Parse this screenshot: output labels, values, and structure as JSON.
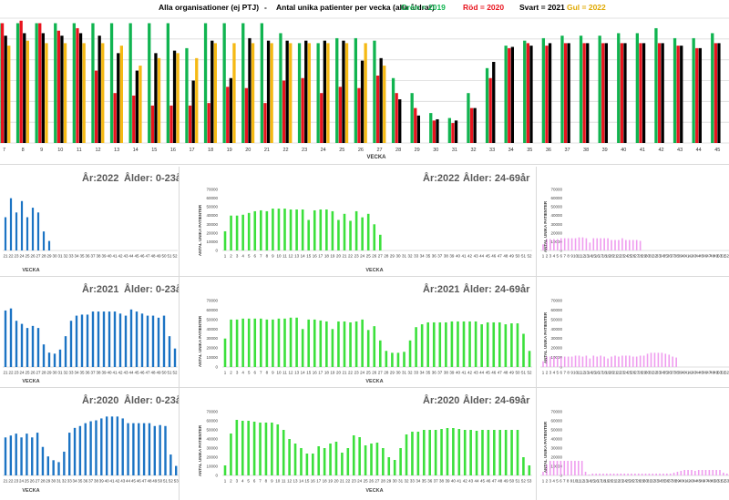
{
  "header": {
    "org": "Alla organisationer (ej PTJ)",
    "dash": "-",
    "title": "Antal unika patienter per vecka (alla åldrar)",
    "legend": [
      {
        "text": "Grön = 2019",
        "color": "#10b450"
      },
      {
        "text": "Röd = 2020",
        "color": "#e8141e"
      },
      {
        "text": "Svart = 2021",
        "color": "#000000"
      },
      {
        "text": "Gul = 2022",
        "color": "#f5b914"
      }
    ]
  },
  "chart_data": [
    {
      "id": "main",
      "type": "bar",
      "title": "Antal unika patienter per vecka (alla åldrar)",
      "xlabel": "VECKA",
      "ylabel": "",
      "ylim": [
        0,
        100
      ],
      "categories": [
        "7",
        "8",
        "9",
        "10",
        "11",
        "12",
        "13",
        "14",
        "15",
        "16",
        "17",
        "18",
        "19",
        "20",
        "21",
        "22",
        "23",
        "24",
        "25",
        "26",
        "27",
        "28",
        "29",
        "30",
        "31",
        "32",
        "33",
        "34",
        "35",
        "36",
        "37",
        "38",
        "39",
        "40",
        "41",
        "42",
        "43",
        "44",
        "45"
      ],
      "series": [
        {
          "name": "2019",
          "color": "#10b450",
          "values": [
            96,
            96,
            96,
            96,
            96,
            96,
            96,
            96,
            96,
            96,
            76,
            96,
            96,
            96,
            96,
            88,
            80,
            80,
            84,
            84,
            82,
            52,
            40,
            24,
            20,
            40,
            60,
            78,
            82,
            84,
            86,
            86,
            86,
            88,
            88,
            92,
            84,
            84,
            88
          ]
        },
        {
          "name": "2020",
          "color": "#e8141e",
          "values": [
            96,
            98,
            96,
            90,
            92,
            58,
            40,
            38,
            30,
            30,
            30,
            32,
            45,
            44,
            32,
            50,
            52,
            40,
            45,
            44,
            54,
            40,
            28,
            18,
            16,
            28,
            52,
            76,
            80,
            78,
            80,
            80,
            80,
            80,
            80,
            80,
            78,
            76,
            80
          ]
        },
        {
          "name": "2021",
          "color": "#000000",
          "values": [
            86,
            88,
            88,
            86,
            88,
            86,
            72,
            58,
            72,
            74,
            50,
            82,
            52,
            84,
            82,
            82,
            82,
            82,
            82,
            66,
            68,
            35,
            22,
            19,
            18,
            28,
            65,
            77,
            78,
            80,
            80,
            80,
            80,
            80,
            80,
            80,
            78,
            76,
            80
          ]
        },
        {
          "name": "2022",
          "color": "#f5b914",
          "values": [
            78,
            82,
            80,
            80,
            80,
            80,
            78,
            62,
            68,
            72,
            68,
            80,
            80,
            80,
            80,
            80,
            80,
            80,
            80,
            80,
            62,
            0,
            0,
            0,
            0,
            0,
            0,
            0,
            0,
            0,
            0,
            0,
            0,
            0,
            0,
            0,
            0,
            0,
            0
          ]
        }
      ]
    },
    {
      "id": "2022-0-23",
      "type": "bar",
      "title_year": "År:2022",
      "title_age": "Ålder: 0-23år",
      "xlabel": "VECKA",
      "ylim": [
        0,
        70000
      ],
      "categories": [
        "21",
        "22",
        "23",
        "24",
        "25",
        "26",
        "27",
        "28",
        "29",
        "30",
        "31",
        "32",
        "33",
        "34",
        "35",
        "36",
        "37",
        "38",
        "39",
        "40",
        "41",
        "42",
        "43",
        "44",
        "45",
        "46",
        "47",
        "48",
        "49",
        "50",
        "51",
        "52"
      ],
      "values": [
        35000,
        55000,
        40000,
        52000,
        35000,
        45000,
        40000,
        20000,
        10000,
        0,
        0,
        0,
        0,
        0,
        0,
        0,
        0,
        0,
        0,
        0,
        0,
        0,
        0,
        0,
        0,
        0,
        0,
        0,
        0,
        0,
        0,
        0
      ]
    },
    {
      "id": "2022-24-69",
      "type": "bar",
      "title_year": "År:2022",
      "title_age": "Ålder: 24-69år",
      "xlabel": "VECKA",
      "ylabel": "ANTAL UNIKA PATIENTER",
      "ylim": [
        0,
        70000
      ],
      "yticks": [
        "0",
        "10000",
        "20000",
        "30000",
        "40000",
        "50000",
        "60000",
        "70000"
      ],
      "categories": [
        "1",
        "2",
        "3",
        "4",
        "5",
        "6",
        "7",
        "8",
        "9",
        "10",
        "11",
        "12",
        "13",
        "14",
        "15",
        "16",
        "17",
        "18",
        "19",
        "20",
        "21",
        "22",
        "23",
        "24",
        "25",
        "26",
        "27",
        "28",
        "29",
        "30",
        "31",
        "32",
        "33",
        "34",
        "35",
        "36",
        "37",
        "38",
        "39",
        "40",
        "41",
        "42",
        "43",
        "44",
        "45",
        "46",
        "47",
        "48",
        "49",
        "50",
        "51",
        "52"
      ],
      "values": [
        22000,
        40000,
        40000,
        41000,
        43000,
        45000,
        46000,
        45000,
        48000,
        48000,
        48000,
        47000,
        47000,
        47000,
        35000,
        46000,
        47000,
        47000,
        45000,
        35000,
        42000,
        34000,
        45000,
        38000,
        42000,
        30000,
        18000,
        0,
        0,
        0,
        0,
        0,
        0,
        0,
        0,
        0,
        0,
        0,
        0,
        0,
        0,
        0,
        0,
        0,
        0,
        0,
        0,
        0,
        0,
        0,
        0,
        0
      ]
    },
    {
      "id": "2022-70",
      "type": "bar",
      "ylabel": "ANTAL UNIKA PATIENTER",
      "ylim": [
        0,
        70000
      ],
      "yticks": [
        "0",
        "10000",
        "20000",
        "30000",
        "40000",
        "50000",
        "60000",
        "70000"
      ],
      "categories": [
        "1",
        "2",
        "3",
        "4",
        "5",
        "6",
        "7",
        "8",
        "9",
        "10",
        "11",
        "12",
        "13",
        "14",
        "15",
        "16",
        "17",
        "18",
        "19",
        "20",
        "21",
        "22",
        "23",
        "24",
        "25",
        "26",
        "27",
        "28",
        "29",
        "30",
        "31",
        "32",
        "33",
        "34",
        "35",
        "36",
        "37",
        "38",
        "39",
        "40",
        "41",
        "42",
        "43",
        "44",
        "45",
        "46",
        "47",
        "48",
        "49",
        "50",
        "51",
        "52"
      ],
      "values": [
        7000,
        13000,
        13000,
        13000,
        13000,
        14000,
        14000,
        14000,
        14000,
        14000,
        15000,
        15000,
        14000,
        9000,
        14000,
        14000,
        14000,
        14000,
        14000,
        12000,
        12000,
        12000,
        14000,
        12000,
        12000,
        12000,
        12000,
        11000,
        0,
        0,
        0,
        0,
        0,
        0,
        0,
        0,
        0,
        0,
        0,
        0,
        0,
        0,
        0,
        0,
        0,
        0,
        0,
        0,
        0,
        0,
        0,
        0
      ]
    },
    {
      "id": "2021-0-23",
      "type": "bar",
      "title_year": "År:2021",
      "title_age": "Ålder: 0-23år",
      "xlabel": "VECKA",
      "ylim": [
        0,
        70000
      ],
      "categories": [
        "21",
        "22",
        "23",
        "24",
        "25",
        "26",
        "27",
        "28",
        "29",
        "30",
        "31",
        "32",
        "33",
        "34",
        "35",
        "36",
        "37",
        "38",
        "39",
        "40",
        "41",
        "42",
        "43",
        "44",
        "45",
        "46",
        "47",
        "48",
        "49",
        "50",
        "51",
        "52"
      ],
      "values": [
        55000,
        57000,
        45000,
        42000,
        38000,
        40000,
        38000,
        22000,
        14000,
        13000,
        17000,
        30000,
        45000,
        50000,
        51000,
        51000,
        54000,
        54000,
        54000,
        54000,
        54000,
        52000,
        50000,
        56000,
        54000,
        52000,
        50000,
        50000,
        48000,
        50000,
        30000,
        18000
      ]
    },
    {
      "id": "2021-24-69",
      "type": "bar",
      "title_year": "År:2021",
      "title_age": "Ålder: 24-69år",
      "xlabel": "VECKA",
      "ylabel": "ANTAL UNIKA PATIENTER",
      "ylim": [
        0,
        70000
      ],
      "yticks": [
        "0",
        "10000",
        "20000",
        "30000",
        "40000",
        "50000",
        "60000",
        "70000"
      ],
      "categories": [
        "1",
        "2",
        "3",
        "4",
        "5",
        "6",
        "7",
        "8",
        "9",
        "10",
        "11",
        "12",
        "13",
        "14",
        "15",
        "16",
        "17",
        "18",
        "19",
        "20",
        "21",
        "22",
        "23",
        "24",
        "25",
        "26",
        "27",
        "28",
        "29",
        "30",
        "31",
        "32",
        "33",
        "34",
        "35",
        "36",
        "37",
        "38",
        "39",
        "40",
        "41",
        "42",
        "43",
        "44",
        "45",
        "46",
        "47",
        "48",
        "49",
        "50",
        "51",
        "52"
      ],
      "values": [
        30000,
        50000,
        50000,
        51000,
        51000,
        51000,
        51000,
        50000,
        50000,
        51000,
        51000,
        52000,
        52000,
        40000,
        50000,
        50000,
        49000,
        48000,
        40000,
        48000,
        48000,
        47000,
        48000,
        50000,
        39000,
        43000,
        28000,
        17000,
        15000,
        15000,
        16000,
        28000,
        42000,
        45000,
        47000,
        47000,
        47000,
        47000,
        48000,
        48000,
        48000,
        48000,
        48000,
        45000,
        47000,
        47000,
        47000,
        45000,
        46000,
        46000,
        35000,
        17000
      ]
    },
    {
      "id": "2021-70",
      "type": "bar",
      "ylabel": "ANTAL UNIKA PATIENTER",
      "ylim": [
        0,
        70000
      ],
      "yticks": [
        "0",
        "10000",
        "20000",
        "30000",
        "40000",
        "50000",
        "60000",
        "70000"
      ],
      "categories": [
        "1",
        "2",
        "3",
        "4",
        "5",
        "6",
        "7",
        "8",
        "9",
        "10",
        "11",
        "12",
        "13",
        "14",
        "15",
        "16",
        "17",
        "18",
        "19",
        "20",
        "21",
        "22",
        "23",
        "24",
        "25",
        "26",
        "27",
        "28",
        "29",
        "30",
        "31",
        "32",
        "33",
        "34",
        "35",
        "36",
        "37",
        "38",
        "39",
        "40",
        "41",
        "42",
        "43",
        "44",
        "45",
        "46",
        "47",
        "48",
        "49",
        "50",
        "51",
        "52"
      ],
      "values": [
        6000,
        11000,
        11000,
        11000,
        11000,
        11000,
        11000,
        11000,
        11000,
        12000,
        12000,
        11000,
        12000,
        9000,
        12000,
        11000,
        12000,
        11000,
        9000,
        11000,
        12000,
        11000,
        12000,
        12000,
        12000,
        11000,
        11000,
        12000,
        12000,
        14000,
        15000,
        15000,
        15000,
        15000,
        14000,
        13000,
        11000,
        10000,
        0,
        0,
        0,
        0,
        0,
        0,
        0,
        0,
        0,
        0,
        0,
        0,
        0,
        0
      ]
    },
    {
      "id": "2020-0-23",
      "type": "bar",
      "title_year": "År:2020",
      "title_age": "Ålder: 0-23år",
      "xlabel": "VECKA",
      "ylim": [
        0,
        70000
      ],
      "categories": [
        "21",
        "22",
        "23",
        "24",
        "25",
        "26",
        "27",
        "28",
        "29",
        "30",
        "31",
        "32",
        "33",
        "34",
        "35",
        "36",
        "37",
        "38",
        "39",
        "40",
        "41",
        "42",
        "43",
        "44",
        "45",
        "46",
        "47",
        "48",
        "49",
        "50",
        "51",
        "52",
        "53"
      ],
      "values": [
        40000,
        42000,
        44000,
        40000,
        44000,
        40000,
        45000,
        30000,
        20000,
        16000,
        14000,
        25000,
        45000,
        50000,
        52000,
        55000,
        57000,
        58000,
        60000,
        62000,
        62000,
        62000,
        60000,
        55000,
        55000,
        55000,
        55000,
        55000,
        52000,
        53000,
        52000,
        22000,
        10000
      ]
    },
    {
      "id": "2020-24-69",
      "type": "bar",
      "title_year": "År:2020",
      "title_age": "Ålder: 24-69år",
      "xlabel": "VECKA",
      "ylabel": "ANTAL UNIKA PATIENTER",
      "ylim": [
        0,
        70000
      ],
      "yticks": [
        "0",
        "10000",
        "20000",
        "30000",
        "40000",
        "50000",
        "60000",
        "70000"
      ],
      "categories": [
        "1",
        "2",
        "3",
        "4",
        "5",
        "6",
        "7",
        "8",
        "9",
        "10",
        "11",
        "12",
        "13",
        "14",
        "15",
        "16",
        "17",
        "18",
        "19",
        "20",
        "21",
        "22",
        "23",
        "24",
        "25",
        "26",
        "27",
        "28",
        "29",
        "30",
        "31",
        "32",
        "33",
        "34",
        "35",
        "36",
        "37",
        "38",
        "39",
        "40",
        "41",
        "42",
        "43",
        "44",
        "45",
        "46",
        "47",
        "48",
        "49",
        "50",
        "51",
        "52",
        "53"
      ],
      "values": [
        11000,
        46000,
        61000,
        60000,
        60000,
        59000,
        58000,
        58000,
        58000,
        56000,
        50000,
        40000,
        35000,
        30000,
        24000,
        24000,
        32000,
        30000,
        35000,
        37000,
        25000,
        30000,
        44000,
        42000,
        33000,
        35000,
        36000,
        30000,
        20000,
        17000,
        30000,
        45000,
        48000,
        48000,
        50000,
        50000,
        50000,
        51000,
        52000,
        52000,
        51000,
        50000,
        50000,
        49000,
        50000,
        50000,
        50000,
        50000,
        50000,
        50000,
        50000,
        20000,
        11000
      ]
    },
    {
      "id": "2020-70",
      "type": "bar",
      "ylabel": "ANTAL UNIKA PATIENTER",
      "ylim": [
        0,
        70000
      ],
      "yticks": [
        "0",
        "10000",
        "20000",
        "30000",
        "40000",
        "50000",
        "60000",
        "70000"
      ],
      "categories": [
        "1",
        "2",
        "3",
        "4",
        "5",
        "6",
        "7",
        "8",
        "9",
        "10",
        "11",
        "12",
        "13",
        "14",
        "15",
        "16",
        "17",
        "18",
        "19",
        "20",
        "21",
        "22",
        "23",
        "24",
        "25",
        "26",
        "27",
        "28",
        "29",
        "30",
        "31",
        "32",
        "33",
        "34",
        "35",
        "36",
        "37",
        "38",
        "39",
        "40",
        "41",
        "42",
        "43",
        "44",
        "45",
        "46",
        "47",
        "48",
        "49",
        "50",
        "51",
        "52",
        "53"
      ],
      "values": [
        4000,
        12000,
        16000,
        16000,
        16000,
        16000,
        16000,
        16000,
        16000,
        16000,
        16000,
        16000,
        4000,
        1000,
        2000,
        2000,
        2000,
        2000,
        2000,
        2000,
        2000,
        2000,
        2000,
        2000,
        2000,
        2000,
        2000,
        2000,
        2000,
        2000,
        2000,
        2000,
        2000,
        2000,
        2000,
        2000,
        2000,
        3000,
        4000,
        5000,
        6000,
        6000,
        6000,
        5000,
        6000,
        6000,
        6000,
        6000,
        6000,
        6000,
        6000,
        3000,
        2000
      ]
    }
  ]
}
